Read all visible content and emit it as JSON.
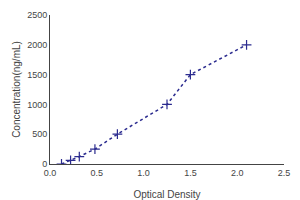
{
  "chart_data": {
    "type": "line",
    "x": [
      0.123,
      0.22,
      0.313,
      0.48,
      0.72,
      1.25,
      1.5,
      2.1
    ],
    "values": [
      0,
      62.5,
      125,
      250,
      500,
      1000,
      1500,
      2000
    ],
    "xlabel": "Optical Density",
    "ylabel": "Concentration(ng/mL)",
    "xlim": [
      0,
      2.5
    ],
    "ylim": [
      0,
      2500
    ],
    "xticks": [
      {
        "value": 0,
        "label": "0.0"
      },
      0.5,
      {
        "value": 1.0,
        "label": "1.0"
      },
      1.5,
      {
        "value": 2.0,
        "label": "2.0"
      },
      2.5
    ],
    "yticks": [
      0,
      500,
      1000,
      1500,
      2000,
      2500
    ],
    "color": "#2b2b8f",
    "marker": "+",
    "line_style": "dotted",
    "grid": false
  }
}
